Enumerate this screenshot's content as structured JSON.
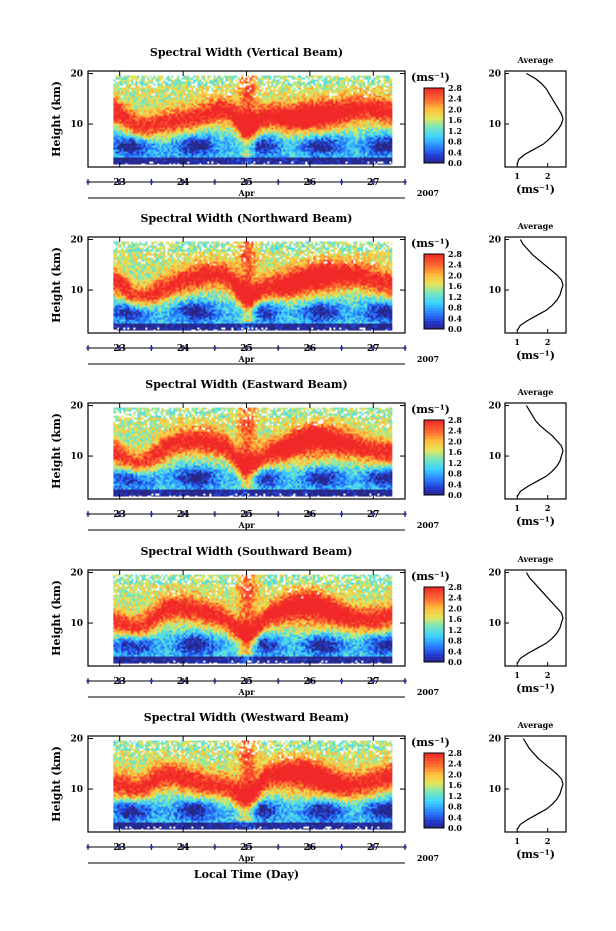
{
  "figure": {
    "xlabel": "Local Time (Day)",
    "month_label": "Apr",
    "year_label": "2007",
    "ylabel": "Height (km)",
    "colorbar_unit": "(ms⁻¹)",
    "colorbar_ticks": [
      "0.0",
      "0.4",
      "0.8",
      "1.2",
      "1.6",
      "2.0",
      "2.4",
      "2.8"
    ],
    "average_title": "Average",
    "average_xlabel": "(ms⁻¹)"
  },
  "chart_data": [
    {
      "type": "heatmap",
      "title": "Spectral Width (Vertical Beam)",
      "xlabel": "Local Time (Day)",
      "ylabel": "Height (km)",
      "x_tick_labels": [
        "23",
        "24",
        "25",
        "26",
        "27"
      ],
      "xlim": [
        22.5,
        27.5
      ],
      "data_x_range": [
        22.9,
        27.3
      ],
      "ylim": [
        1.5,
        20.5
      ],
      "y_tick_labels": [
        "10",
        "20"
      ],
      "colorbar": {
        "label": "(ms⁻¹)",
        "range": [
          0.0,
          2.8
        ],
        "ticks": [
          0.0,
          0.4,
          0.8,
          1.2,
          1.6,
          2.0,
          2.4,
          2.8
        ],
        "colormap": "rainbow"
      },
      "average_profile": {
        "title": "Average",
        "xlabel": "(ms⁻¹)",
        "xlim": [
          0.6,
          2.6
        ],
        "x_tick_labels": [
          "1",
          "2"
        ],
        "height_km": [
          2,
          3,
          4,
          5,
          6,
          7,
          8,
          9,
          10,
          11,
          12,
          13,
          14,
          15,
          16,
          17,
          18,
          19,
          20
        ],
        "width_ms": [
          1.0,
          1.05,
          1.25,
          1.55,
          1.85,
          2.05,
          2.2,
          2.35,
          2.45,
          2.5,
          2.45,
          2.35,
          2.25,
          2.15,
          2.05,
          1.95,
          1.8,
          1.6,
          1.3
        ]
      }
    },
    {
      "type": "heatmap",
      "title": "Spectral Width (Northward Beam)",
      "xlabel": "Local Time (Day)",
      "ylabel": "Height (km)",
      "x_tick_labels": [
        "23",
        "24",
        "25",
        "26",
        "27"
      ],
      "xlim": [
        22.5,
        27.5
      ],
      "data_x_range": [
        22.9,
        27.3
      ],
      "ylim": [
        1.5,
        20.5
      ],
      "y_tick_labels": [
        "10",
        "20"
      ],
      "colorbar": {
        "label": "(ms⁻¹)",
        "range": [
          0.0,
          2.8
        ],
        "ticks": [
          0.0,
          0.4,
          0.8,
          1.2,
          1.6,
          2.0,
          2.4,
          2.8
        ],
        "colormap": "rainbow"
      },
      "average_profile": {
        "title": "Average",
        "xlabel": "(ms⁻¹)",
        "xlim": [
          0.6,
          2.6
        ],
        "x_tick_labels": [
          "1",
          "2"
        ],
        "height_km": [
          2,
          3,
          4,
          5,
          6,
          7,
          8,
          9,
          10,
          11,
          12,
          13,
          14,
          15,
          16,
          17,
          18,
          19,
          20
        ],
        "width_ms": [
          1.0,
          1.1,
          1.35,
          1.65,
          1.95,
          2.15,
          2.3,
          2.4,
          2.45,
          2.5,
          2.45,
          2.3,
          2.1,
          1.9,
          1.7,
          1.5,
          1.35,
          1.2,
          1.1
        ]
      }
    },
    {
      "type": "heatmap",
      "title": "Spectral Width (Eastward Beam)",
      "xlabel": "Local Time (Day)",
      "ylabel": "Height (km)",
      "x_tick_labels": [
        "23",
        "24",
        "25",
        "26",
        "27"
      ],
      "xlim": [
        22.5,
        27.5
      ],
      "data_x_range": [
        22.9,
        27.3
      ],
      "ylim": [
        1.5,
        20.5
      ],
      "y_tick_labels": [
        "10",
        "20"
      ],
      "colorbar": {
        "label": "(ms⁻¹)",
        "range": [
          0.0,
          2.8
        ],
        "ticks": [
          0.0,
          0.4,
          0.8,
          1.2,
          1.6,
          2.0,
          2.4,
          2.8
        ],
        "colormap": "rainbow"
      },
      "average_profile": {
        "title": "Average",
        "xlabel": "(ms⁻¹)",
        "xlim": [
          0.6,
          2.6
        ],
        "x_tick_labels": [
          "1",
          "2"
        ],
        "height_km": [
          2,
          3,
          4,
          5,
          6,
          7,
          8,
          9,
          10,
          11,
          12,
          13,
          14,
          15,
          16,
          17,
          18,
          19,
          20
        ],
        "width_ms": [
          1.0,
          1.1,
          1.35,
          1.65,
          1.95,
          2.15,
          2.3,
          2.4,
          2.45,
          2.5,
          2.45,
          2.3,
          2.15,
          1.95,
          1.75,
          1.6,
          1.5,
          1.4,
          1.3
        ]
      }
    },
    {
      "type": "heatmap",
      "title": "Spectral Width (Southward Beam)",
      "xlabel": "Local Time (Day)",
      "ylabel": "Height (km)",
      "x_tick_labels": [
        "23",
        "24",
        "25",
        "26",
        "27"
      ],
      "xlim": [
        22.5,
        27.5
      ],
      "data_x_range": [
        22.9,
        27.3
      ],
      "ylim": [
        1.5,
        20.5
      ],
      "y_tick_labels": [
        "10",
        "20"
      ],
      "colorbar": {
        "label": "(ms⁻¹)",
        "range": [
          0.0,
          2.8
        ],
        "ticks": [
          0.0,
          0.4,
          0.8,
          1.2,
          1.6,
          2.0,
          2.4,
          2.8
        ],
        "colormap": "rainbow"
      },
      "average_profile": {
        "title": "Average",
        "xlabel": "(ms⁻¹)",
        "xlim": [
          0.6,
          2.6
        ],
        "x_tick_labels": [
          "1",
          "2"
        ],
        "height_km": [
          2,
          3,
          4,
          5,
          6,
          7,
          8,
          9,
          10,
          11,
          12,
          13,
          14,
          15,
          16,
          17,
          18,
          19,
          20
        ],
        "width_ms": [
          1.0,
          1.1,
          1.35,
          1.65,
          1.95,
          2.15,
          2.3,
          2.4,
          2.45,
          2.5,
          2.45,
          2.3,
          2.15,
          2.0,
          1.85,
          1.7,
          1.55,
          1.4,
          1.3
        ]
      }
    },
    {
      "type": "heatmap",
      "title": "Spectral Width (Westward Beam)",
      "xlabel": "Local Time (Day)",
      "ylabel": "Height (km)",
      "x_tick_labels": [
        "23",
        "24",
        "25",
        "26",
        "27"
      ],
      "xlim": [
        22.5,
        27.5
      ],
      "data_x_range": [
        22.9,
        27.3
      ],
      "ylim": [
        1.5,
        20.5
      ],
      "y_tick_labels": [
        "10",
        "20"
      ],
      "colorbar": {
        "label": "(ms⁻¹)",
        "range": [
          0.0,
          2.8
        ],
        "ticks": [
          0.0,
          0.4,
          0.8,
          1.2,
          1.6,
          2.0,
          2.4,
          2.8
        ],
        "colormap": "rainbow"
      },
      "average_profile": {
        "title": "Average",
        "xlabel": "(ms⁻¹)",
        "xlim": [
          0.6,
          2.6
        ],
        "x_tick_labels": [
          "1",
          "2"
        ],
        "height_km": [
          2,
          3,
          4,
          5,
          6,
          7,
          8,
          9,
          10,
          11,
          12,
          13,
          14,
          15,
          16,
          17,
          18,
          19,
          20
        ],
        "width_ms": [
          1.0,
          1.1,
          1.35,
          1.65,
          1.95,
          2.15,
          2.3,
          2.4,
          2.45,
          2.5,
          2.45,
          2.3,
          2.1,
          1.9,
          1.7,
          1.55,
          1.4,
          1.3,
          1.2
        ]
      }
    }
  ]
}
